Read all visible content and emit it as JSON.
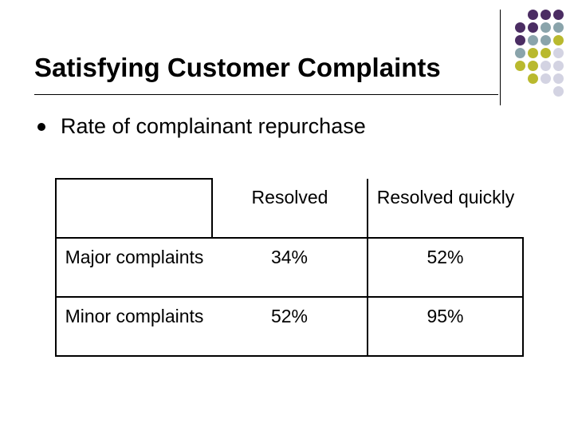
{
  "slide": {
    "title": "Satisfying Customer Complaints",
    "bullet": "Rate of complainant repurchase"
  },
  "decoration": {
    "colors": [
      "#4b2d63",
      "#8aa4ab",
      "#b9b92e",
      "#d3d3e2"
    ]
  },
  "table": {
    "columns": [
      "",
      "Resolved",
      "Resolved quickly"
    ],
    "rows": [
      {
        "label": "Major complaints",
        "values": [
          "34%",
          "52%"
        ]
      },
      {
        "label": "Minor complaints",
        "values": [
          "52%",
          "95%"
        ]
      }
    ]
  }
}
